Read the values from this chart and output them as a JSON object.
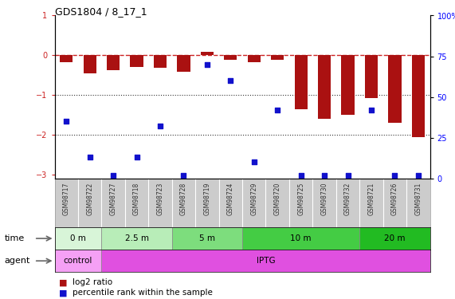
{
  "title": "GDS1804 / 8_17_1",
  "samples": [
    "GSM98717",
    "GSM98722",
    "GSM98727",
    "GSM98718",
    "GSM98723",
    "GSM98728",
    "GSM98719",
    "GSM98724",
    "GSM98729",
    "GSM98720",
    "GSM98725",
    "GSM98730",
    "GSM98732",
    "GSM98721",
    "GSM98726",
    "GSM98731"
  ],
  "log2_ratio": [
    -0.18,
    -0.45,
    -0.38,
    -0.3,
    -0.32,
    -0.42,
    0.08,
    -0.12,
    -0.18,
    -0.12,
    -1.35,
    -1.6,
    -1.5,
    -1.08,
    -1.7,
    -2.05
  ],
  "pct_rank": [
    35,
    13,
    2,
    13,
    32,
    2,
    70,
    60,
    10,
    42,
    2,
    2,
    2,
    42,
    2,
    2
  ],
  "time_groups": [
    {
      "label": "0 m",
      "start": 0,
      "end": 2
    },
    {
      "label": "2.5 m",
      "start": 2,
      "end": 5
    },
    {
      "label": "5 m",
      "start": 5,
      "end": 8
    },
    {
      "label": "10 m",
      "start": 8,
      "end": 13
    },
    {
      "label": "20 m",
      "start": 13,
      "end": 16
    }
  ],
  "time_colors": [
    "#d8f5d8",
    "#b8edb8",
    "#7ddd7d",
    "#44cc44",
    "#22bb22"
  ],
  "agent_groups": [
    {
      "label": "control",
      "start": 0,
      "end": 2
    },
    {
      "label": "IPTG",
      "start": 2,
      "end": 16
    }
  ],
  "agent_colors": [
    "#f5a0f5",
    "#e050e0"
  ],
  "ylim_left": [
    -3.1,
    1.0
  ],
  "ylim_right": [
    0,
    100
  ],
  "bar_color": "#aa1111",
  "dot_color": "#1111cc",
  "hline_color": "#cc2222",
  "dotline_color": "#333333",
  "bg_color": "#ffffff",
  "right_ticks": [
    0,
    25,
    50,
    75,
    100
  ],
  "right_tick_labels": [
    "0",
    "25",
    "50",
    "75",
    "100%"
  ],
  "left_ticks": [
    -3,
    -2,
    -1,
    0,
    1
  ],
  "dotted_hlines": [
    -1.0,
    -2.0
  ],
  "legend_items": [
    {
      "label": "log2 ratio",
      "color": "#aa1111"
    },
    {
      "label": "percentile rank within the sample",
      "color": "#1111cc"
    }
  ],
  "sample_bg": "#cccccc",
  "arrow_color": "#888888"
}
